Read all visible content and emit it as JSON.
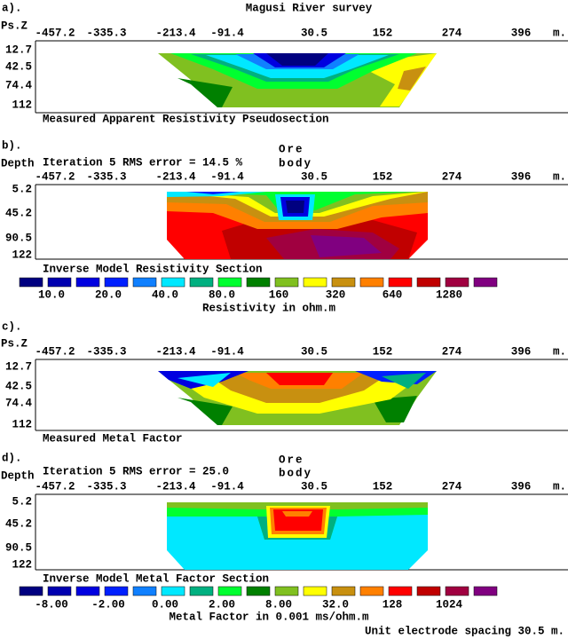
{
  "title": "Magusi River survey",
  "panels": [
    {
      "label": "a).",
      "depth_label": "Ps.Z",
      "x_labels": [
        "-457.2",
        "-335.3",
        "-213.4",
        "-91.4",
        "30.5",
        "152",
        "274",
        "396"
      ],
      "x_unit": "m.",
      "depth_labels": [
        "12.7",
        "42.5",
        "74.4",
        "112"
      ],
      "caption": "Measured Apparent Resistivity Pseudosection"
    },
    {
      "label": "b).",
      "depth_label": "Depth",
      "iteration": "Iteration 5 RMS error = 14.5 %",
      "annotation": [
        "Ore",
        "body"
      ],
      "x_labels": [
        "-457.2",
        "-335.3",
        "-213.4",
        "-91.4",
        "30.5",
        "152",
        "274",
        "396"
      ],
      "x_unit": "m.",
      "depth_labels": [
        "5.2",
        "45.2",
        "90.5",
        "122"
      ],
      "caption": "Inverse Model Resistivity Section"
    },
    {
      "label": "c).",
      "depth_label": "Ps.Z",
      "x_labels": [
        "-457.2",
        "-335.3",
        "-213.4",
        "-91.4",
        "30.5",
        "152",
        "274",
        "396"
      ],
      "x_unit": "m.",
      "depth_labels": [
        "12.7",
        "42.5",
        "74.4",
        "112"
      ],
      "caption": "Measured Metal Factor"
    },
    {
      "label": "d).",
      "depth_label": "Depth",
      "iteration": "Iteration 5 RMS error = 25.0",
      "annotation": [
        "Ore",
        "body"
      ],
      "x_labels": [
        "-457.2",
        "-335.3",
        "-213.4",
        "-91.4",
        "30.5",
        "152",
        "274",
        "396"
      ],
      "x_unit": "m.",
      "depth_labels": [
        "5.2",
        "45.2",
        "90.5",
        "122"
      ],
      "caption": "Inverse Model Metal Factor Section"
    }
  ],
  "legends": [
    {
      "colors": [
        "#000080",
        "#0000b0",
        "#0000e0",
        "#0020ff",
        "#1080ff",
        "#00e8ff",
        "#00b080",
        "#00ff30",
        "#008000",
        "#80c020",
        "#ffff00",
        "#c89010",
        "#ff8000",
        "#ff0000",
        "#c00000",
        "#a00040",
        "#800080"
      ],
      "labels": [
        "10.0",
        "20.0",
        "40.0",
        "80.0",
        "160",
        "320",
        "640",
        "1280"
      ],
      "caption": "Resistivity in ohm.m"
    },
    {
      "colors": [
        "#000080",
        "#0000b0",
        "#0000e0",
        "#0020ff",
        "#1080ff",
        "#00e8ff",
        "#00b080",
        "#00ff30",
        "#008000",
        "#80c020",
        "#ffff00",
        "#c89010",
        "#ff8000",
        "#ff0000",
        "#c00000",
        "#a00040",
        "#800080"
      ],
      "labels": [
        "-8.00",
        "-2.00",
        "0.00",
        "2.00",
        "8.00",
        "32.0",
        "128",
        "1024"
      ],
      "caption": "Metal Factor in 0.001 ms/ohm.m"
    }
  ],
  "footer": "Unit electrode spacing 30.5 m."
}
